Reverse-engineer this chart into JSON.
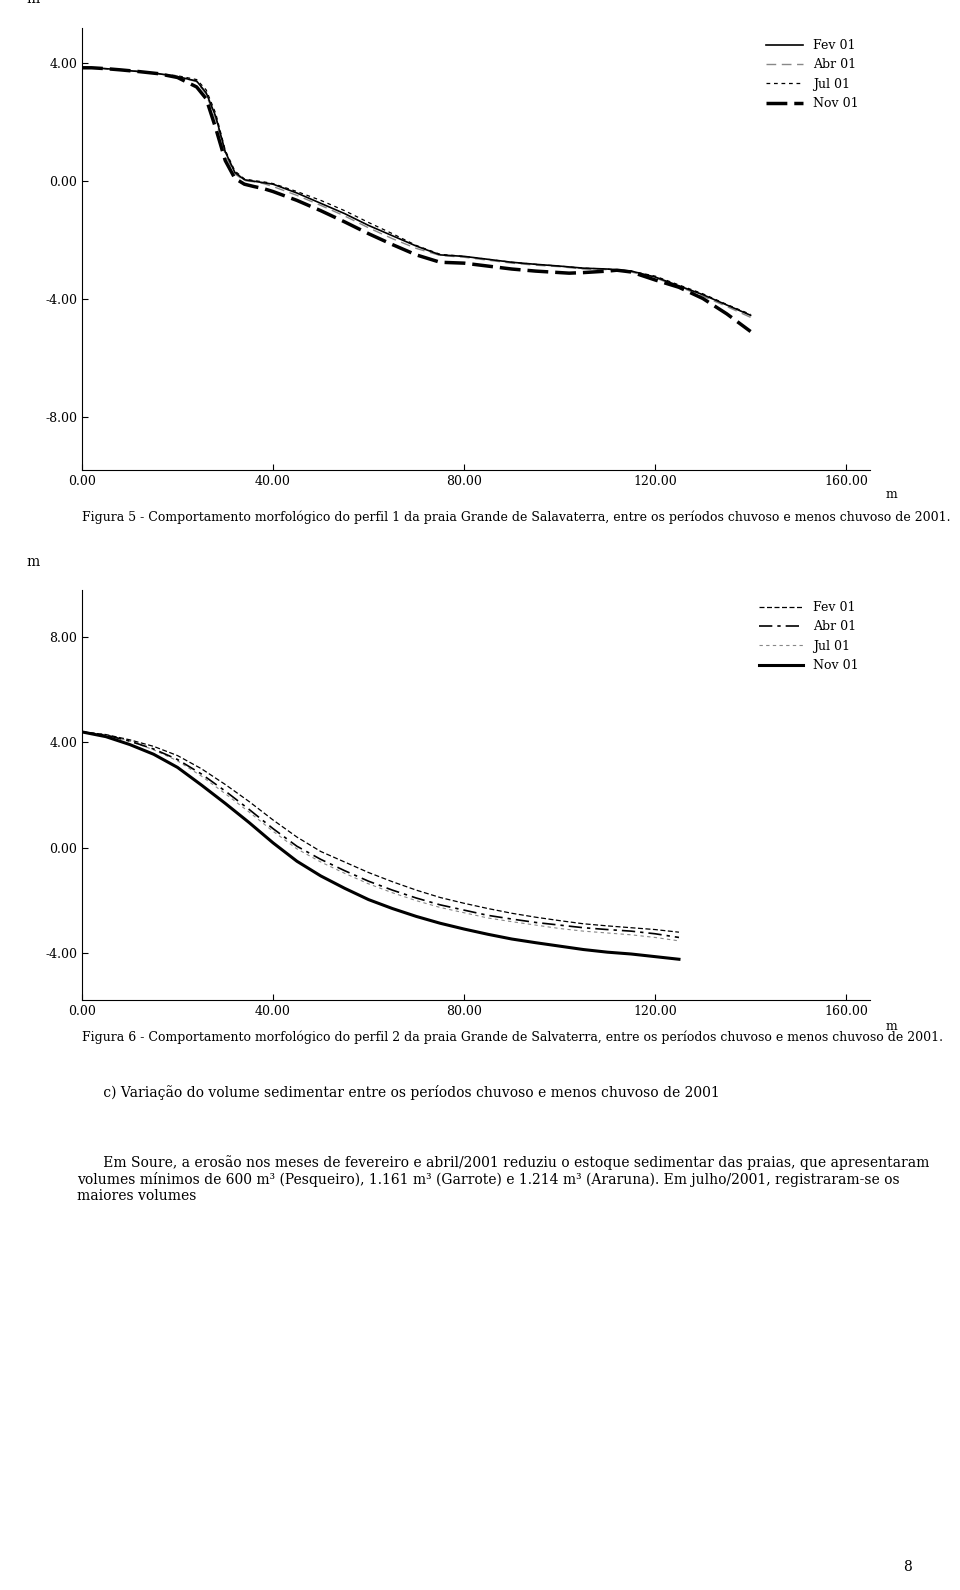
{
  "fig5": {
    "ylabel": "m",
    "xticks": [
      0.0,
      40.0,
      80.0,
      120.0,
      160.0
    ],
    "yticks": [
      -8.0,
      -4.0,
      0.0,
      4.0
    ],
    "xlim": [
      0,
      165
    ],
    "ylim": [
      -9.8,
      5.2
    ],
    "caption": "Figura 5 - Comportamento morfológico do perfil 1 da praia Grande de Salavaterra, entre os períodos chuvoso e menos chuvoso de 2001.",
    "fev01_x": [
      0,
      2,
      5,
      8,
      12,
      16,
      20,
      24,
      26,
      28,
      30,
      32,
      34,
      36,
      38,
      40,
      45,
      50,
      55,
      60,
      65,
      70,
      75,
      80,
      85,
      90,
      95,
      100,
      105,
      110,
      115,
      120,
      125,
      130,
      135,
      140
    ],
    "fev01_y": [
      3.85,
      3.85,
      3.82,
      3.78,
      3.72,
      3.65,
      3.55,
      3.4,
      3.0,
      2.2,
      1.0,
      0.3,
      0.05,
      0.0,
      -0.05,
      -0.1,
      -0.4,
      -0.75,
      -1.1,
      -1.5,
      -1.85,
      -2.2,
      -2.5,
      -2.55,
      -2.65,
      -2.75,
      -2.82,
      -2.88,
      -2.95,
      -2.98,
      -3.05,
      -3.25,
      -3.55,
      -3.85,
      -4.2,
      -4.55
    ],
    "abr01_x": [
      0,
      2,
      5,
      8,
      12,
      16,
      20,
      24,
      26,
      28,
      30,
      32,
      34,
      36,
      38,
      40,
      45,
      50,
      55,
      60,
      65,
      70,
      75,
      80,
      85,
      90,
      95,
      100,
      105,
      110,
      115,
      120,
      125,
      130,
      135,
      140
    ],
    "abr01_y": [
      3.85,
      3.85,
      3.82,
      3.78,
      3.72,
      3.65,
      3.55,
      3.38,
      2.95,
      2.1,
      0.9,
      0.25,
      0.02,
      -0.02,
      -0.08,
      -0.18,
      -0.48,
      -0.82,
      -1.18,
      -1.58,
      -1.95,
      -2.28,
      -2.52,
      -2.58,
      -2.68,
      -2.78,
      -2.85,
      -2.9,
      -2.98,
      -3.0,
      -3.08,
      -3.28,
      -3.58,
      -3.9,
      -4.25,
      -4.62
    ],
    "jul01_x": [
      0,
      2,
      5,
      8,
      12,
      16,
      20,
      24,
      26,
      28,
      30,
      32,
      34,
      36,
      38,
      40,
      45,
      50,
      55,
      60,
      65,
      70,
      75,
      80,
      85,
      90,
      95,
      100,
      105,
      110,
      115,
      120,
      125,
      130,
      135,
      140
    ],
    "jul01_y": [
      3.85,
      3.85,
      3.82,
      3.78,
      3.72,
      3.65,
      3.58,
      3.45,
      3.1,
      2.3,
      1.05,
      0.35,
      0.08,
      0.02,
      -0.02,
      -0.08,
      -0.35,
      -0.65,
      -1.0,
      -1.4,
      -1.78,
      -2.18,
      -2.48,
      -2.55,
      -2.65,
      -2.75,
      -2.82,
      -2.88,
      -2.95,
      -2.98,
      -3.05,
      -3.22,
      -3.52,
      -3.82,
      -4.18,
      -4.52
    ],
    "nov01_x": [
      0,
      2,
      5,
      8,
      12,
      16,
      20,
      24,
      26,
      28,
      30,
      32,
      34,
      36,
      38,
      40,
      45,
      50,
      55,
      60,
      65,
      70,
      75,
      80,
      85,
      90,
      95,
      100,
      102,
      105,
      107,
      110,
      112,
      115,
      120,
      125,
      130,
      135,
      140
    ],
    "nov01_y": [
      3.85,
      3.85,
      3.82,
      3.78,
      3.72,
      3.65,
      3.52,
      3.2,
      2.8,
      1.8,
      0.7,
      0.1,
      -0.1,
      -0.18,
      -0.25,
      -0.35,
      -0.65,
      -1.0,
      -1.38,
      -1.78,
      -2.15,
      -2.5,
      -2.75,
      -2.78,
      -2.88,
      -2.98,
      -3.05,
      -3.1,
      -3.12,
      -3.1,
      -3.08,
      -3.05,
      -3.02,
      -3.08,
      -3.35,
      -3.6,
      -3.98,
      -4.5,
      -5.1
    ]
  },
  "fig6": {
    "ylabel": "m",
    "xticks": [
      0.0,
      40.0,
      80.0,
      120.0,
      160.0
    ],
    "yticks": [
      -4.0,
      0.0,
      4.0,
      8.0
    ],
    "xlim": [
      0,
      165
    ],
    "ylim": [
      -5.8,
      9.8
    ],
    "caption": "Figura 6 - Comportamento morfológico do perfil 2 da praia Grande de Salvaterra, entre os períodos chuvoso e menos chuvoso de 2001.",
    "fev01_x": [
      0,
      5,
      10,
      15,
      20,
      25,
      30,
      35,
      40,
      45,
      50,
      55,
      60,
      65,
      70,
      75,
      80,
      85,
      90,
      95,
      100,
      105,
      110,
      115,
      120,
      125
    ],
    "fev01_y": [
      4.4,
      4.3,
      4.1,
      3.85,
      3.5,
      3.0,
      2.4,
      1.75,
      1.05,
      0.4,
      -0.15,
      -0.55,
      -0.95,
      -1.3,
      -1.62,
      -1.9,
      -2.12,
      -2.32,
      -2.5,
      -2.65,
      -2.78,
      -2.9,
      -2.98,
      -3.05,
      -3.12,
      -3.22
    ],
    "abr01_x": [
      0,
      5,
      10,
      15,
      20,
      25,
      30,
      35,
      40,
      45,
      50,
      55,
      60,
      65,
      70,
      75,
      80,
      85,
      90,
      95,
      100,
      105,
      110,
      115,
      120,
      125
    ],
    "abr01_y": [
      4.4,
      4.28,
      4.05,
      3.75,
      3.35,
      2.8,
      2.15,
      1.45,
      0.72,
      0.05,
      -0.45,
      -0.88,
      -1.28,
      -1.62,
      -1.92,
      -2.18,
      -2.38,
      -2.58,
      -2.72,
      -2.85,
      -2.95,
      -3.05,
      -3.12,
      -3.18,
      -3.28,
      -3.42
    ],
    "jul01_x": [
      0,
      5,
      10,
      15,
      20,
      25,
      30,
      35,
      40,
      45,
      50,
      55,
      60,
      65,
      70,
      75,
      80,
      85,
      90,
      95,
      100,
      105,
      110,
      115,
      120,
      125
    ],
    "jul01_y": [
      4.4,
      4.28,
      4.05,
      3.72,
      3.3,
      2.72,
      2.05,
      1.35,
      0.62,
      -0.05,
      -0.55,
      -0.98,
      -1.38,
      -1.72,
      -2.02,
      -2.28,
      -2.48,
      -2.68,
      -2.82,
      -2.95,
      -3.08,
      -3.18,
      -3.25,
      -3.32,
      -3.42,
      -3.55
    ],
    "nov01_x": [
      0,
      5,
      10,
      15,
      20,
      25,
      30,
      35,
      40,
      45,
      50,
      55,
      60,
      65,
      70,
      75,
      80,
      85,
      90,
      95,
      100,
      105,
      110,
      115,
      120,
      125
    ],
    "nov01_y": [
      4.4,
      4.22,
      3.92,
      3.55,
      3.05,
      2.38,
      1.68,
      0.95,
      0.18,
      -0.52,
      -1.08,
      -1.55,
      -1.98,
      -2.32,
      -2.62,
      -2.88,
      -3.1,
      -3.3,
      -3.48,
      -3.62,
      -3.75,
      -3.88,
      -3.98,
      -4.05,
      -4.15,
      -4.25
    ]
  },
  "caption5": "Figura 5 - Comportamento morfológico do perfil 1 da praia Grande de Salavaterra, entre os períodos chuvoso e menos chuvoso de 2001.",
  "caption6": "Figura 6 - Comportamento morfológico do perfil 2 da praia Grande de Salvaterra, entre os períodos chuvoso e menos chuvoso de 2001.",
  "text_c": "      c) Variação do volume sedimentar entre os períodos chuvoso e menos chuvoso de 2001",
  "text_em": "      Em Soure, a erosão nos meses de fevereiro e abril/2001 reduziu o estoque sedimentar das praias, que apresentaram volumes mínimos de 600 m³ (Pesqueiro), 1.161 m³ (Garrote) e 1.214 m³ (Araruna). Em julho/2001, registraram-se os maiores volumes",
  "page_number": "8"
}
